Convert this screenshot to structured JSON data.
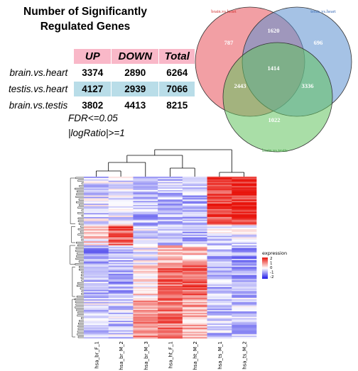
{
  "panel_title_line1": "Number of Significantly",
  "panel_title_line2": "Regulated Genes",
  "colors": {
    "up_header": "#f9b8c8",
    "highlight": "#b9dde8",
    "venn_a": "#e8505a",
    "venn_b": "#5b8fd0",
    "venn_c": "#63c25f"
  },
  "chart_data": [
    {
      "type": "table",
      "columns": [
        "UP",
        "DOWN",
        "Total"
      ],
      "rows": [
        {
          "name": "brain.vs.heart",
          "values": [
            3374,
            2890,
            6264
          ]
        },
        {
          "name": "testis.vs.heart",
          "values": [
            4127,
            2939,
            7066
          ]
        },
        {
          "name": "brain.vs.testis",
          "values": [
            3802,
            4413,
            8215
          ]
        }
      ],
      "notes": [
        "FDR<=0.05",
        "|logRatio|>=1"
      ]
    },
    {
      "type": "venn",
      "sets": [
        "brain.vs.heart",
        "testis.vs.heart",
        "brain.vs.testis"
      ],
      "regions": {
        "a_only": 787,
        "b_only": 696,
        "c_only": 1022,
        "ab": 1620,
        "ac": 2443,
        "bc": 3336,
        "abc": 1414
      }
    },
    {
      "type": "heatmap",
      "columns": [
        "hsa_br_F_1",
        "hsa_br_M_2",
        "hsa_br_M_3",
        "hsa_ht_F_1",
        "hsa_ht_M_2",
        "hsa_ts_M_1",
        "hsa_ts_M_2"
      ],
      "legend_title": "expression",
      "legend_ticks": [
        "2",
        "1",
        "0",
        "-1",
        "-2"
      ],
      "color_range": {
        "low": "#1c16e8",
        "mid": "#ffffff",
        "high": "#e8140c"
      }
    }
  ]
}
